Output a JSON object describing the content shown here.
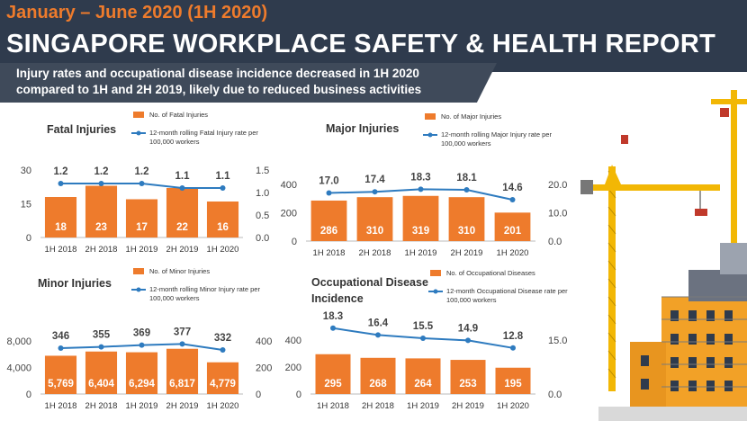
{
  "header": {
    "period": "January – June 2020 (1H 2020)",
    "title": "SINGAPORE WORKPLACE SAFETY & HEALTH REPORT",
    "subtitle_line1": "Injury rates and occupational disease incidence decreased in 1H 2020",
    "subtitle_line2": "compared to 1H and 2H 2019, likely due to reduced business activities"
  },
  "colors": {
    "bar": "#ee7b2c",
    "line": "#2e7bbf",
    "header_bg": "#2f3b4d",
    "accent": "#ee7b2c"
  },
  "chart_data": [
    {
      "type": "bar",
      "title": "Fatal Injuries",
      "categories": [
        "1H 2018",
        "2H 2018",
        "1H 2019",
        "2H 2019",
        "1H 2020"
      ],
      "series": [
        {
          "name": "No. of Fatal Injuries",
          "kind": "bar",
          "axis": "left",
          "values": [
            18,
            23,
            17,
            22,
            16
          ],
          "labels": [
            "18",
            "23",
            "17",
            "22",
            "16"
          ]
        },
        {
          "name": "12-month rolling Fatal Injury rate per 100,000 workers",
          "kind": "line",
          "axis": "right",
          "values": [
            1.2,
            1.2,
            1.2,
            1.1,
            1.1
          ],
          "labels": [
            "1.2",
            "1.2",
            "1.2",
            "1.1",
            "1.1"
          ]
        }
      ],
      "left_axis": {
        "ylim": [
          0,
          30
        ],
        "ticks": [
          "0",
          "15",
          "30"
        ],
        "tick_values": [
          0,
          15,
          30
        ]
      },
      "right_axis": {
        "ylim": [
          0,
          1.5
        ],
        "ticks": [
          "0.0",
          "0.5",
          "1.0",
          "1.5"
        ],
        "tick_values": [
          0,
          0.5,
          1.0,
          1.5
        ]
      },
      "legend_position": "top-right"
    },
    {
      "type": "bar",
      "title": "Major Injuries",
      "categories": [
        "1H 2018",
        "2H 2018",
        "1H 2019",
        "2H 2019",
        "1H 2020"
      ],
      "series": [
        {
          "name": "No. of Major Injuries",
          "kind": "bar",
          "axis": "left",
          "values": [
            286,
            310,
            319,
            310,
            201
          ],
          "labels": [
            "286",
            "310",
            "319",
            "310",
            "201"
          ]
        },
        {
          "name": "12-month rolling Major Injury rate per 100,000 workers",
          "kind": "line",
          "axis": "right",
          "values": [
            17.0,
            17.4,
            18.3,
            18.1,
            14.6
          ],
          "labels": [
            "17.0",
            "17.4",
            "18.3",
            "18.1",
            "14.6"
          ]
        }
      ],
      "left_axis": {
        "ylim": [
          0,
          500
        ],
        "ticks": [
          "0",
          "200",
          "400"
        ],
        "tick_values": [
          0,
          200,
          400
        ]
      },
      "right_axis": {
        "ylim": [
          0,
          25
        ],
        "ticks": [
          "0.0",
          "10.0",
          "20.0"
        ],
        "tick_values": [
          0,
          10,
          20
        ]
      },
      "legend_position": "top-right"
    },
    {
      "type": "bar",
      "title": "Minor Injuries",
      "categories": [
        "1H 2018",
        "2H 2018",
        "1H 2019",
        "2H 2019",
        "1H 2020"
      ],
      "series": [
        {
          "name": "No. of Minor Injuries",
          "kind": "bar",
          "axis": "left",
          "values": [
            5769,
            6404,
            6294,
            6817,
            4779
          ],
          "labels": [
            "5,769",
            "6,404",
            "6,294",
            "6,817",
            "4,779"
          ]
        },
        {
          "name": "12-month rolling Minor Injury rate per 100,000 workers",
          "kind": "line",
          "axis": "right",
          "values": [
            346,
            355,
            369,
            377,
            332
          ],
          "labels": [
            "346",
            "355",
            "369",
            "377",
            "332"
          ]
        }
      ],
      "left_axis": {
        "ylim": [
          0,
          10000
        ],
        "ticks": [
          "0",
          "4,000",
          "8,000"
        ],
        "tick_values": [
          0,
          4000,
          8000
        ]
      },
      "right_axis": {
        "ylim": [
          0,
          500
        ],
        "ticks": [
          "0",
          "200",
          "400"
        ],
        "tick_values": [
          0,
          200,
          400
        ]
      },
      "legend_position": "top-right"
    },
    {
      "type": "bar",
      "title": "Occupational Disease Incidence",
      "title_lines": [
        "Occupational Disease",
        "Incidence"
      ],
      "categories": [
        "1H 2018",
        "2H 2018",
        "1H 2019",
        "2H 2019",
        "1H 2020"
      ],
      "series": [
        {
          "name": "No. of Occupational Diseases",
          "kind": "bar",
          "axis": "left",
          "values": [
            295,
            268,
            264,
            253,
            195
          ],
          "labels": [
            "295",
            "268",
            "264",
            "253",
            "195"
          ]
        },
        {
          "name": "12-month Occupational Disease rate per 100,000 workers",
          "kind": "line",
          "axis": "right",
          "values": [
            18.3,
            16.4,
            15.5,
            14.9,
            12.8
          ],
          "labels": [
            "18.3",
            "16.4",
            "15.5",
            "14.9",
            "12.8"
          ]
        }
      ],
      "left_axis": {
        "ylim": [
          0,
          500
        ],
        "ticks": [
          "0",
          "200",
          "400"
        ],
        "tick_values": [
          0,
          200,
          400
        ]
      },
      "right_axis": {
        "ylim": [
          0,
          25
        ],
        "ticks": [
          "0.0",
          "15.0"
        ],
        "tick_values": [
          0,
          15
        ]
      },
      "legend_position": "top-right"
    }
  ]
}
